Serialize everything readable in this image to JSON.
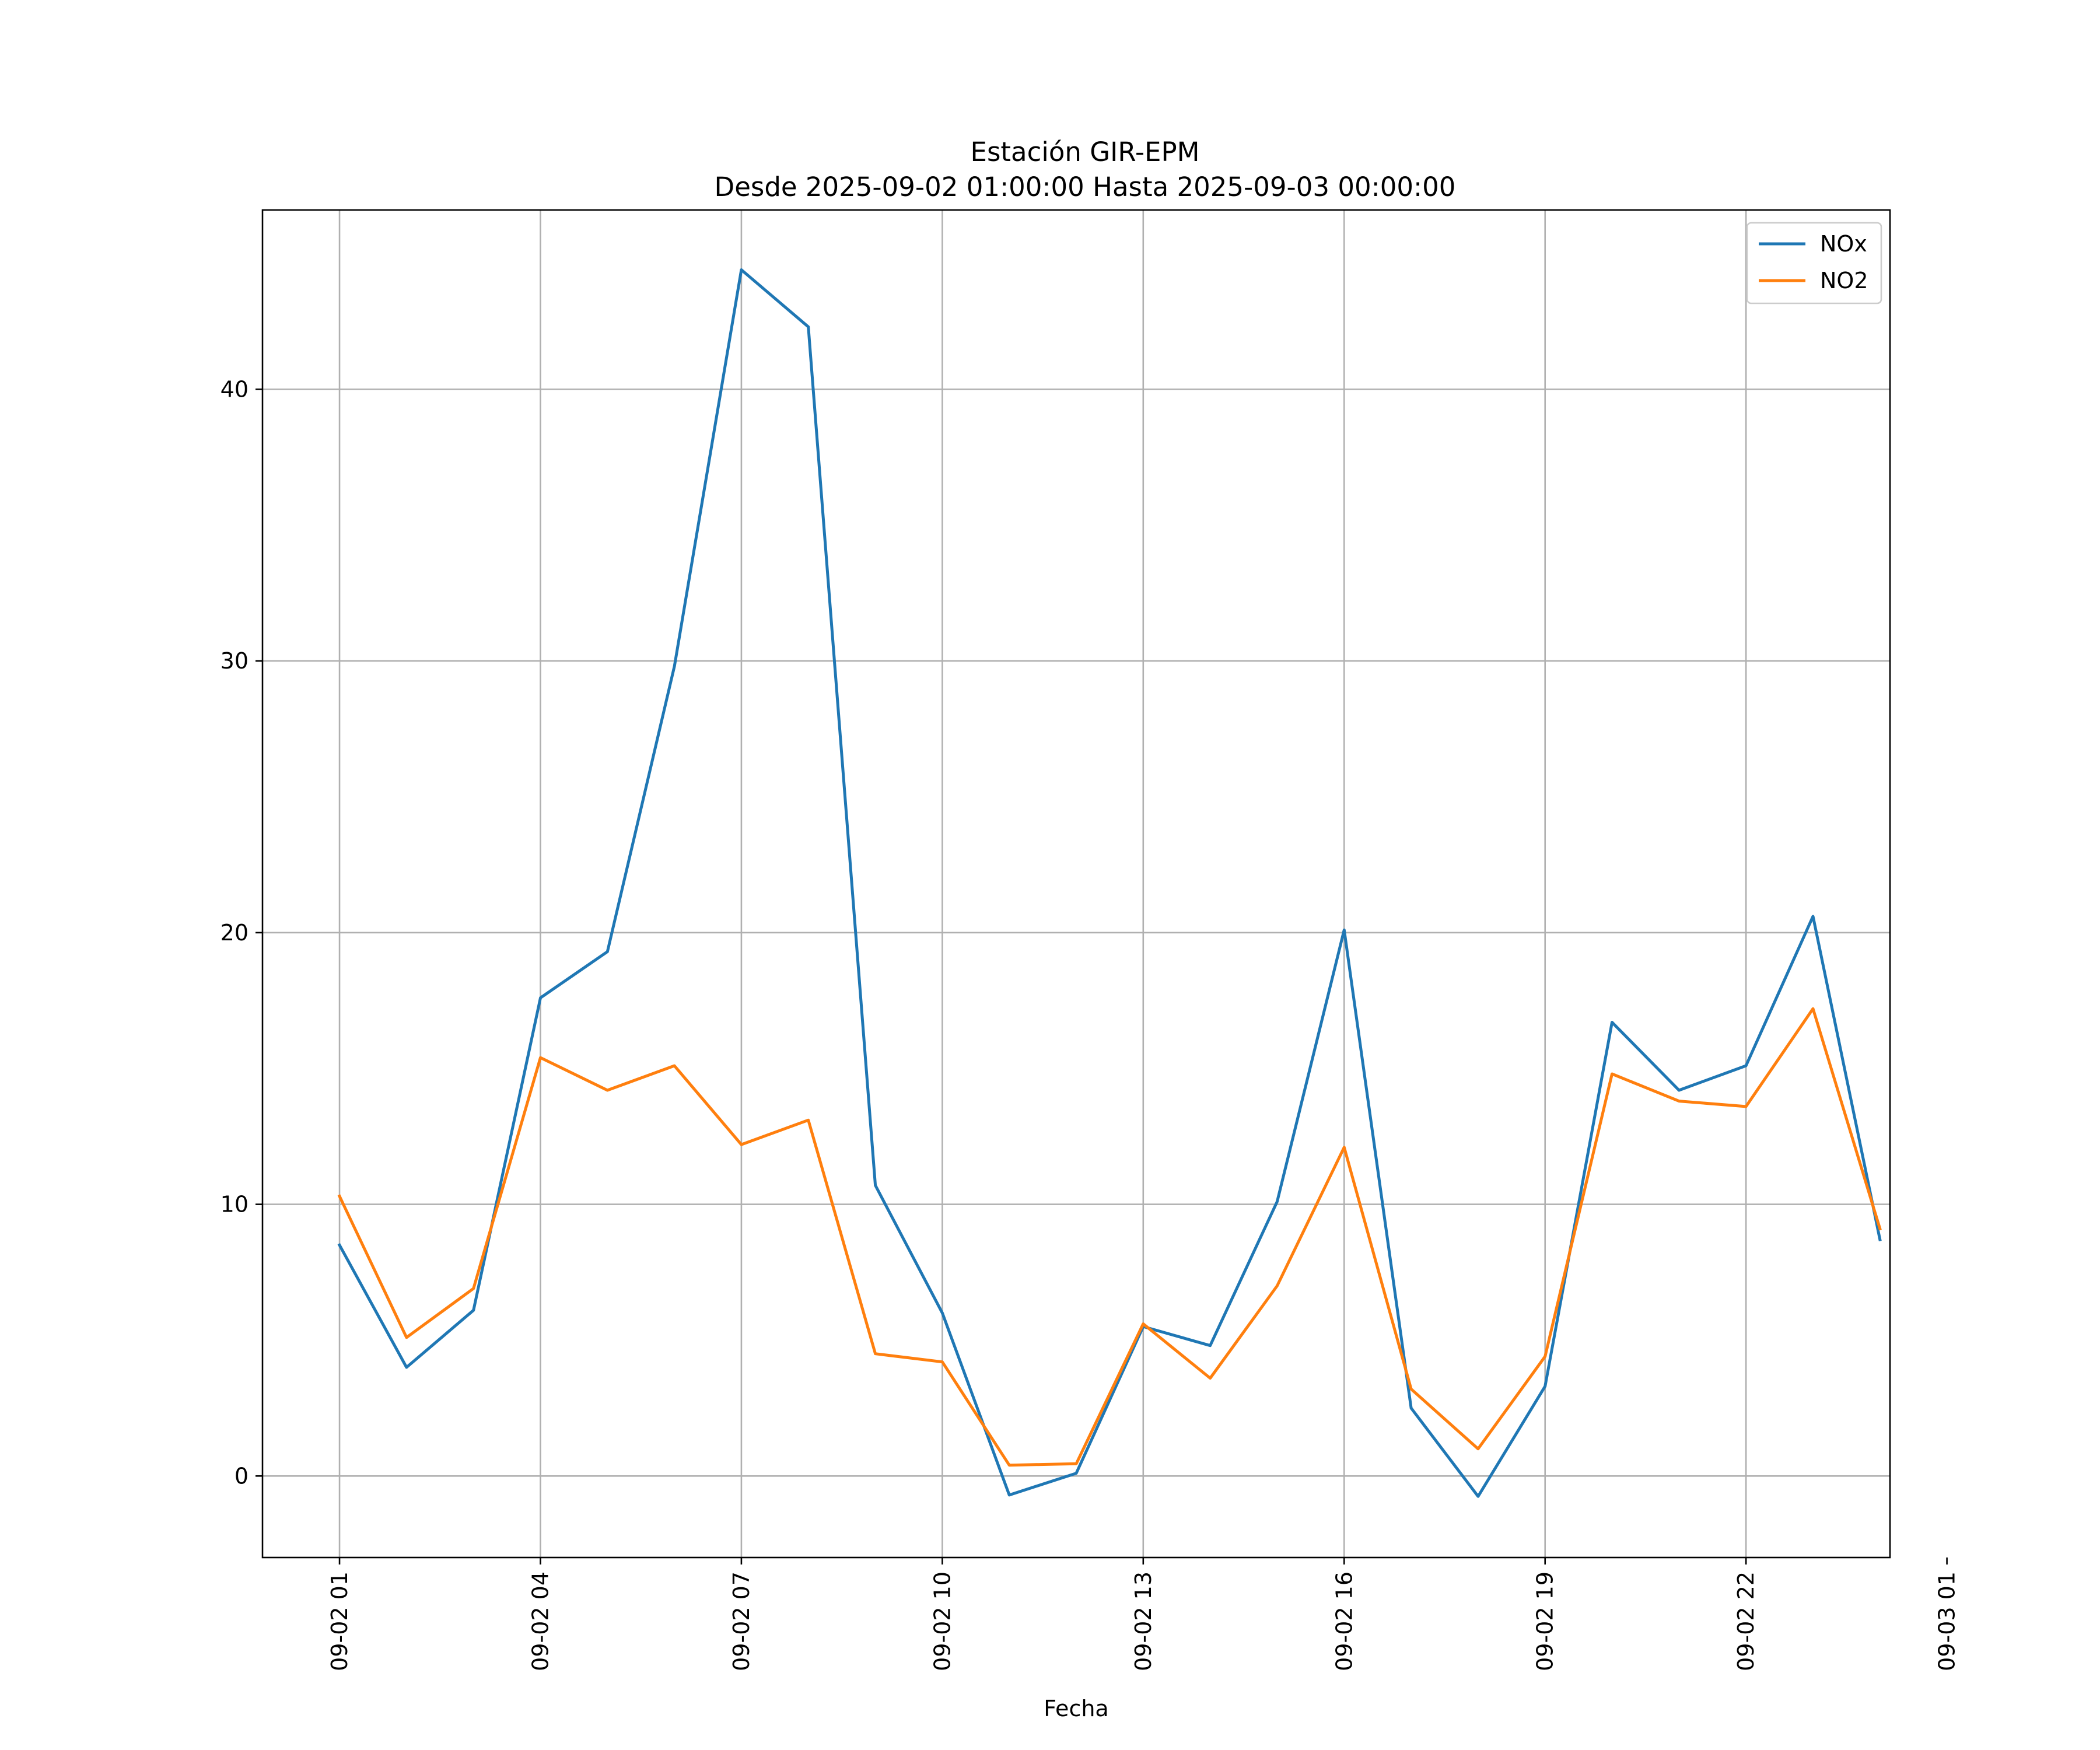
{
  "chart_data": {
    "type": "line",
    "title_line1": "Estación GIR-EPM",
    "title_line2": "Desde 2025-09-02 01:00:00 Hasta 2025-09-03 00:00:00",
    "xlabel": "Fecha",
    "ylabel": "",
    "x_hours": [
      1,
      2,
      3,
      4,
      5,
      6,
      7,
      8,
      9,
      10,
      11,
      12,
      13,
      14,
      15,
      16,
      17,
      18,
      19,
      20,
      21,
      22,
      23,
      24
    ],
    "xlim": [
      -0.15,
      24.15
    ],
    "ylim": [
      -3.0,
      46.6
    ],
    "x_ticks": [
      {
        "x": 1,
        "label": "09-02 01"
      },
      {
        "x": 4,
        "label": "09-02 04"
      },
      {
        "x": 7,
        "label": "09-02 07"
      },
      {
        "x": 10,
        "label": "09-02 10"
      },
      {
        "x": 13,
        "label": "09-02 13"
      },
      {
        "x": 16,
        "label": "09-02 16"
      },
      {
        "x": 19,
        "label": "09-02 19"
      },
      {
        "x": 22,
        "label": "09-02 22"
      },
      {
        "x": 25,
        "label": "09-03 01"
      }
    ],
    "y_ticks": [
      {
        "y": 0,
        "label": "0"
      },
      {
        "y": 10,
        "label": "10"
      },
      {
        "y": 20,
        "label": "20"
      },
      {
        "y": 30,
        "label": "30"
      },
      {
        "y": 40,
        "label": "40"
      }
    ],
    "grid": true,
    "legend_position": "top-right",
    "series": [
      {
        "name": "NOx",
        "color": "#1f77b4",
        "values": [
          8.5,
          4.0,
          6.1,
          17.6,
          19.3,
          29.8,
          44.4,
          42.3,
          10.7,
          6.0,
          -0.7,
          0.1,
          5.5,
          4.8,
          10.1,
          20.1,
          2.5,
          -0.75,
          3.3,
          16.7,
          14.2,
          15.1,
          20.6,
          8.7
        ]
      },
      {
        "name": "NO2",
        "color": "#ff7f0e",
        "values": [
          10.3,
          5.1,
          6.9,
          15.4,
          14.2,
          15.1,
          12.2,
          13.1,
          4.5,
          4.2,
          0.4,
          0.45,
          5.6,
          3.6,
          7.0,
          12.1,
          3.2,
          1.0,
          4.4,
          14.8,
          13.8,
          13.6,
          17.2,
          9.1
        ]
      }
    ]
  }
}
